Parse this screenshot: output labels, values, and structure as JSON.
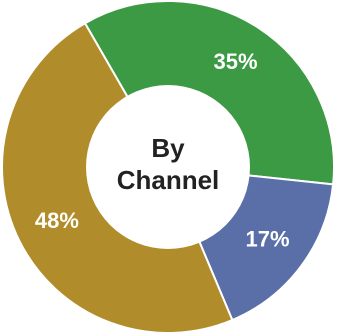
{
  "chart_data": {
    "type": "pie",
    "variant": "donut",
    "center_label": [
      "By",
      "Channel"
    ],
    "slices": [
      {
        "label": "35%",
        "value": 35,
        "color": "#3c9a44"
      },
      {
        "label": "17%",
        "value": 17,
        "color": "#5a6ea8"
      },
      {
        "label": "48%",
        "value": 48,
        "color": "#b08c2a"
      }
    ],
    "start_angle_deg": -120,
    "legend": "none"
  }
}
